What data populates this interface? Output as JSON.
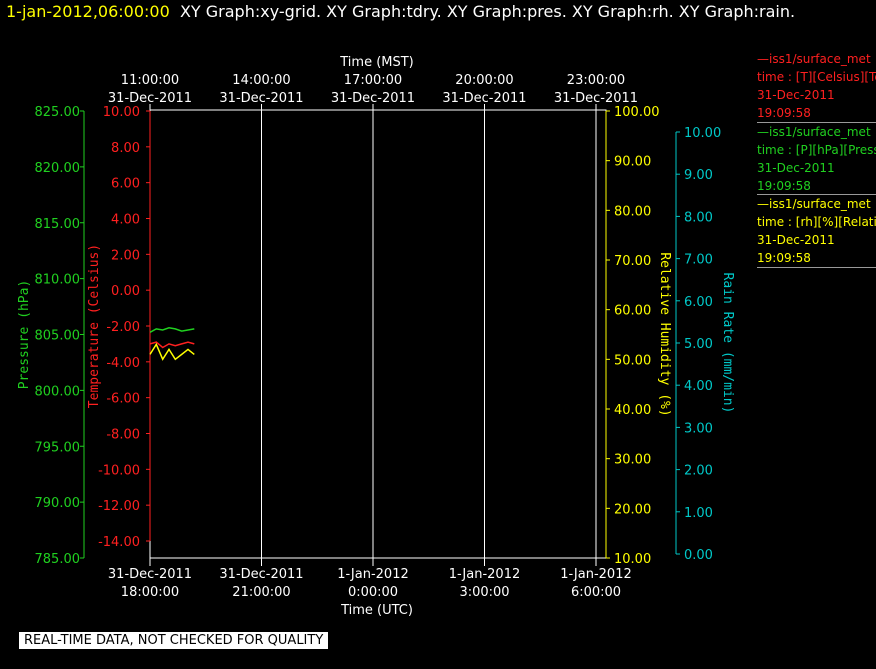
{
  "header": {
    "time_label": "1-jan-2012,06:00:00",
    "graphs_label": "XY Graph:xy-grid.  XY Graph:tdry.  XY Graph:pres.  XY Graph:rh.  XY Graph:rain."
  },
  "legend": [
    {
      "line1": "—iss1/surface_met",
      "line2": "time : [T][Celsius][Temperature]",
      "line3": "31-Dec-2011",
      "line4": "19:09:58",
      "color": "#ff2020"
    },
    {
      "line1": "—iss1/surface_met",
      "line2": "time : [P][hPa][Pressure]",
      "line3": "31-Dec-2011",
      "line4": "19:09:58",
      "color": "#20d020"
    },
    {
      "line1": "—iss1/surface_met",
      "line2": "time : [rh][%][Relative Humidity]",
      "line3": "31-Dec-2011",
      "line4": "19:09:58",
      "color": "#ffff00"
    }
  ],
  "footer": {
    "quality_note": "REAL-TIME DATA, NOT CHECKED FOR QUALITY"
  },
  "chart_data": {
    "type": "line",
    "grid": true,
    "x_top": {
      "label": "Time (MST)",
      "ticks": [
        {
          "time": "11:00:00",
          "date": "31-Dec-2011"
        },
        {
          "time": "14:00:00",
          "date": "31-Dec-2011"
        },
        {
          "time": "17:00:00",
          "date": "31-Dec-2011"
        },
        {
          "time": "20:00:00",
          "date": "31-Dec-2011"
        },
        {
          "time": "23:00:00",
          "date": "31-Dec-2011"
        }
      ]
    },
    "x_bottom": {
      "label": "Time (UTC)",
      "range": [
        "2011-12-31 18:00",
        "2012-01-01 06:00"
      ],
      "ticks": [
        {
          "date": "31-Dec-2011",
          "time": "18:00:00"
        },
        {
          "date": "31-Dec-2011",
          "time": "21:00:00"
        },
        {
          "date": "1-Jan-2012",
          "time": "0:00:00"
        },
        {
          "date": "1-Jan-2012",
          "time": "3:00:00"
        },
        {
          "date": "1-Jan-2012",
          "time": "6:00:00"
        }
      ]
    },
    "axes": {
      "pressure": {
        "label": "Pressure (hPa)",
        "range": [
          785,
          825
        ],
        "color": "#20d020",
        "ticks": [
          "825.00",
          "820.00",
          "815.00",
          "810.00",
          "805.00",
          "800.00",
          "795.00",
          "790.00",
          "785.00"
        ]
      },
      "temperature": {
        "label": "Temperature (Celsius)",
        "range": [
          -15,
          10
        ],
        "color": "#ff2020",
        "ticks": [
          "10.00",
          "8.00",
          "6.00",
          "4.00",
          "2.00",
          "0.00",
          "-2.00",
          "-4.00",
          "-6.00",
          "-8.00",
          "-10.00",
          "-12.00",
          "-14.00"
        ]
      },
      "rh": {
        "label": "Relative Humidity (%)",
        "range": [
          10,
          100
        ],
        "color": "#ffff00",
        "ticks": [
          "100.00",
          "90.00",
          "80.00",
          "70.00",
          "60.00",
          "50.00",
          "40.00",
          "30.00",
          "20.00",
          "10.00"
        ]
      },
      "rain": {
        "label": "Rain Rate (mm/min)",
        "range": [
          0,
          10.5
        ],
        "color": "#00c8c8",
        "ticks": [
          "10.00",
          "9.00",
          "8.00",
          "7.00",
          "6.00",
          "5.00",
          "4.00",
          "3.00",
          "2.00",
          "1.00",
          "0.00"
        ]
      }
    },
    "series": [
      {
        "name": "Pressure",
        "axis": "pressure",
        "color": "#20d020",
        "x": [
          "18:00",
          "18:10",
          "18:20",
          "18:30",
          "18:40",
          "18:50",
          "19:00",
          "19:10"
        ],
        "y": [
          805.2,
          805.5,
          805.4,
          805.6,
          805.5,
          805.3,
          805.4,
          805.5
        ]
      },
      {
        "name": "Temperature",
        "axis": "temperature",
        "color": "#ff2020",
        "x": [
          "18:00",
          "18:10",
          "18:20",
          "18:30",
          "18:40",
          "18:50",
          "19:00",
          "19:10"
        ],
        "y": [
          -3.0,
          -2.9,
          -3.2,
          -3.0,
          -3.1,
          -3.0,
          -2.9,
          -3.0
        ]
      },
      {
        "name": "Relative Humidity",
        "axis": "rh",
        "color": "#ffff00",
        "x": [
          "18:00",
          "18:10",
          "18:20",
          "18:30",
          "18:40",
          "18:50",
          "19:00",
          "19:10"
        ],
        "y": [
          51,
          53,
          50,
          52,
          50,
          51,
          52,
          51
        ]
      }
    ]
  }
}
